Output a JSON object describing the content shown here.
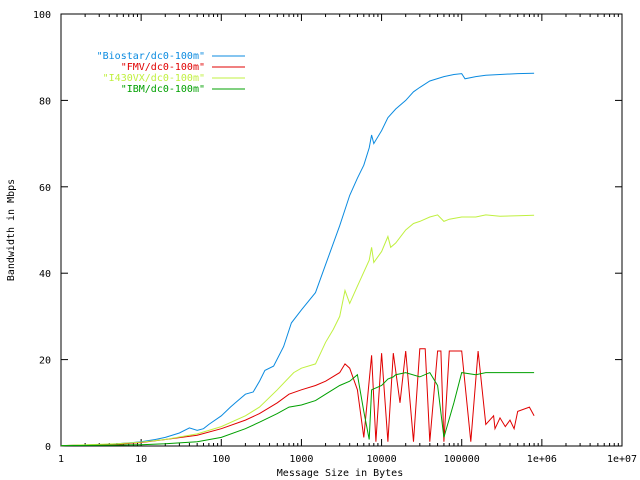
{
  "chart_data": {
    "type": "line",
    "title": "",
    "xlabel": "Message Size in Bytes",
    "ylabel": "Bandwidth in Mbps",
    "x_scale": "log",
    "xlim": [
      1,
      10000000
    ],
    "ylim": [
      0,
      100
    ],
    "x_ticks": [
      1,
      10,
      100,
      1000,
      10000,
      100000,
      1000000,
      10000000
    ],
    "x_tick_labels": [
      "1",
      "10",
      "100",
      "1000",
      "10000",
      "100000",
      "1e+06",
      "1e+07"
    ],
    "y_ticks": [
      0,
      20,
      40,
      60,
      80,
      100
    ],
    "y_tick_labels": [
      "0",
      "20",
      "40",
      "60",
      "80",
      "100"
    ],
    "grid": false,
    "legend_position": "top-left",
    "series": [
      {
        "name": "\"Biostar/dc0-100m\"",
        "color": "#0b8be0",
        "points": [
          [
            1,
            0.1
          ],
          [
            2,
            0.2
          ],
          [
            3,
            0.3
          ],
          [
            5,
            0.5
          ],
          [
            8,
            0.8
          ],
          [
            10,
            1.0
          ],
          [
            15,
            1.5
          ],
          [
            20,
            2.0
          ],
          [
            30,
            3.0
          ],
          [
            40,
            4.2
          ],
          [
            50,
            3.6
          ],
          [
            60,
            4.0
          ],
          [
            70,
            5.0
          ],
          [
            100,
            7.0
          ],
          [
            130,
            9.0
          ],
          [
            150,
            10.0
          ],
          [
            200,
            12.0
          ],
          [
            250,
            12.5
          ],
          [
            300,
            15.0
          ],
          [
            350,
            17.5
          ],
          [
            450,
            18.5
          ],
          [
            600,
            23.0
          ],
          [
            750,
            28.5
          ],
          [
            1000,
            31.5
          ],
          [
            1500,
            35.5
          ],
          [
            2000,
            42.0
          ],
          [
            3000,
            51.0
          ],
          [
            4000,
            58.0
          ],
          [
            5000,
            62.0
          ],
          [
            6000,
            65.0
          ],
          [
            7000,
            69.0
          ],
          [
            7500,
            72.0
          ],
          [
            8000,
            70.0
          ],
          [
            10000,
            73.0
          ],
          [
            12000,
            76.0
          ],
          [
            15000,
            78.0
          ],
          [
            20000,
            80.0
          ],
          [
            25000,
            82.0
          ],
          [
            30000,
            83.0
          ],
          [
            40000,
            84.5
          ],
          [
            60000,
            85.5
          ],
          [
            80000,
            86.0
          ],
          [
            100000,
            86.2
          ],
          [
            110000,
            85.0
          ],
          [
            150000,
            85.5
          ],
          [
            200000,
            85.8
          ],
          [
            300000,
            86.0
          ],
          [
            500000,
            86.2
          ],
          [
            800000,
            86.3
          ]
        ]
      },
      {
        "name": "\"FMV/dc0-100m\"",
        "color": "#e00000",
        "points": [
          [
            1,
            0.1
          ],
          [
            5,
            0.4
          ],
          [
            10,
            0.8
          ],
          [
            20,
            1.5
          ],
          [
            50,
            2.5
          ],
          [
            100,
            4.0
          ],
          [
            200,
            6.0
          ],
          [
            300,
            7.5
          ],
          [
            500,
            10.0
          ],
          [
            700,
            12.0
          ],
          [
            1000,
            13.0
          ],
          [
            1500,
            14.0
          ],
          [
            2000,
            15.0
          ],
          [
            3000,
            17.0
          ],
          [
            3500,
            19.0
          ],
          [
            4000,
            18.0
          ],
          [
            5000,
            13.0
          ],
          [
            6000,
            2.0
          ],
          [
            7500,
            21.0
          ],
          [
            8500,
            1.0
          ],
          [
            10000,
            21.5
          ],
          [
            12000,
            1.0
          ],
          [
            14000,
            21.5
          ],
          [
            17000,
            10.0
          ],
          [
            20000,
            22.0
          ],
          [
            25000,
            1.0
          ],
          [
            30000,
            22.5
          ],
          [
            35000,
            22.5
          ],
          [
            40000,
            1.0
          ],
          [
            50000,
            22.0
          ],
          [
            55000,
            22.0
          ],
          [
            60000,
            1.0
          ],
          [
            70000,
            22.0
          ],
          [
            80000,
            22.0
          ],
          [
            100000,
            22.0
          ],
          [
            130000,
            1.0
          ],
          [
            160000,
            22.0
          ],
          [
            200000,
            5.0
          ],
          [
            250000,
            7.0
          ],
          [
            260000,
            4.0
          ],
          [
            300000,
            6.5
          ],
          [
            350000,
            4.5
          ],
          [
            400000,
            6.0
          ],
          [
            450000,
            4.0
          ],
          [
            500000,
            8.0
          ],
          [
            700000,
            9.0
          ],
          [
            800000,
            7.0
          ]
        ]
      },
      {
        "name": "\"I430VX/dc0-100m\"",
        "color": "#c0f040",
        "points": [
          [
            1,
            0.1
          ],
          [
            5,
            0.5
          ],
          [
            10,
            0.9
          ],
          [
            20,
            1.5
          ],
          [
            50,
            2.8
          ],
          [
            100,
            4.5
          ],
          [
            200,
            7.0
          ],
          [
            300,
            9.0
          ],
          [
            500,
            13.0
          ],
          [
            800,
            17.0
          ],
          [
            1000,
            18.0
          ],
          [
            1500,
            19.0
          ],
          [
            2000,
            24.0
          ],
          [
            2500,
            27.0
          ],
          [
            3000,
            30.0
          ],
          [
            3500,
            36.0
          ],
          [
            4000,
            33.0
          ],
          [
            5000,
            37.0
          ],
          [
            7000,
            43.0
          ],
          [
            7500,
            46.0
          ],
          [
            8000,
            42.5
          ],
          [
            10000,
            45.0
          ],
          [
            12000,
            48.5
          ],
          [
            13000,
            46.0
          ],
          [
            15000,
            47.0
          ],
          [
            20000,
            50.0
          ],
          [
            25000,
            51.5
          ],
          [
            30000,
            52.0
          ],
          [
            40000,
            53.0
          ],
          [
            50000,
            53.5
          ],
          [
            60000,
            52.0
          ],
          [
            70000,
            52.5
          ],
          [
            100000,
            53.0
          ],
          [
            150000,
            53.0
          ],
          [
            200000,
            53.5
          ],
          [
            300000,
            53.2
          ],
          [
            500000,
            53.3
          ],
          [
            800000,
            53.4
          ]
        ]
      },
      {
        "name": "\"IBM/dc0-100m\"",
        "color": "#00a000",
        "points": [
          [
            1,
            0.1
          ],
          [
            5,
            0.2
          ],
          [
            10,
            0.3
          ],
          [
            20,
            0.5
          ],
          [
            50,
            1.0
          ],
          [
            100,
            2.0
          ],
          [
            200,
            4.0
          ],
          [
            300,
            5.5
          ],
          [
            500,
            7.5
          ],
          [
            700,
            9.0
          ],
          [
            1000,
            9.5
          ],
          [
            1500,
            10.5
          ],
          [
            2000,
            12.0
          ],
          [
            3000,
            14.0
          ],
          [
            4000,
            15.0
          ],
          [
            5000,
            16.5
          ],
          [
            6000,
            8.0
          ],
          [
            7000,
            1.5
          ],
          [
            7500,
            13.0
          ],
          [
            10000,
            14.0
          ],
          [
            12000,
            15.5
          ],
          [
            14000,
            16.0
          ],
          [
            15000,
            16.5
          ],
          [
            20000,
            17.0
          ],
          [
            30000,
            16.0
          ],
          [
            40000,
            17.0
          ],
          [
            50000,
            14.0
          ],
          [
            60000,
            2.0
          ],
          [
            80000,
            10.0
          ],
          [
            100000,
            17.0
          ],
          [
            150000,
            16.5
          ],
          [
            200000,
            17.0
          ],
          [
            300000,
            17.0
          ],
          [
            500000,
            17.0
          ],
          [
            800000,
            17.0
          ]
        ]
      }
    ]
  }
}
